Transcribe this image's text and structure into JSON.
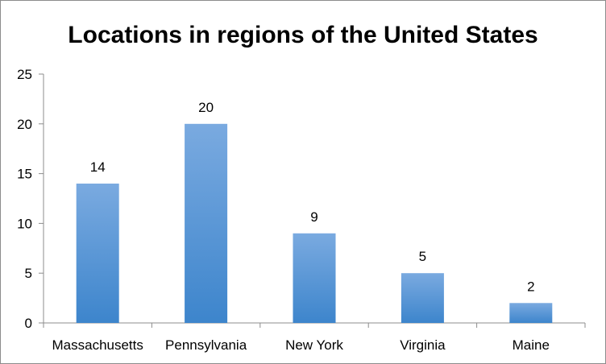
{
  "chart_data": {
    "type": "bar",
    "title": "Locations in regions of the United States",
    "xlabel": "",
    "ylabel": "",
    "categories": [
      "Massachusetts",
      "Pennsylvania",
      "New York",
      "Virginia",
      "Maine"
    ],
    "values": [
      14,
      20,
      9,
      5,
      2
    ],
    "data_labels": [
      "14",
      "20",
      "9",
      "5",
      "2"
    ],
    "ylim": [
      0,
      25
    ],
    "yticks": [
      0,
      5,
      10,
      15,
      20,
      25
    ],
    "grid": false,
    "legend": "none",
    "colors": {
      "bar_top": "#7aaae0",
      "bar_bottom": "#3d85cc",
      "axis": "#8c8c8c"
    }
  }
}
